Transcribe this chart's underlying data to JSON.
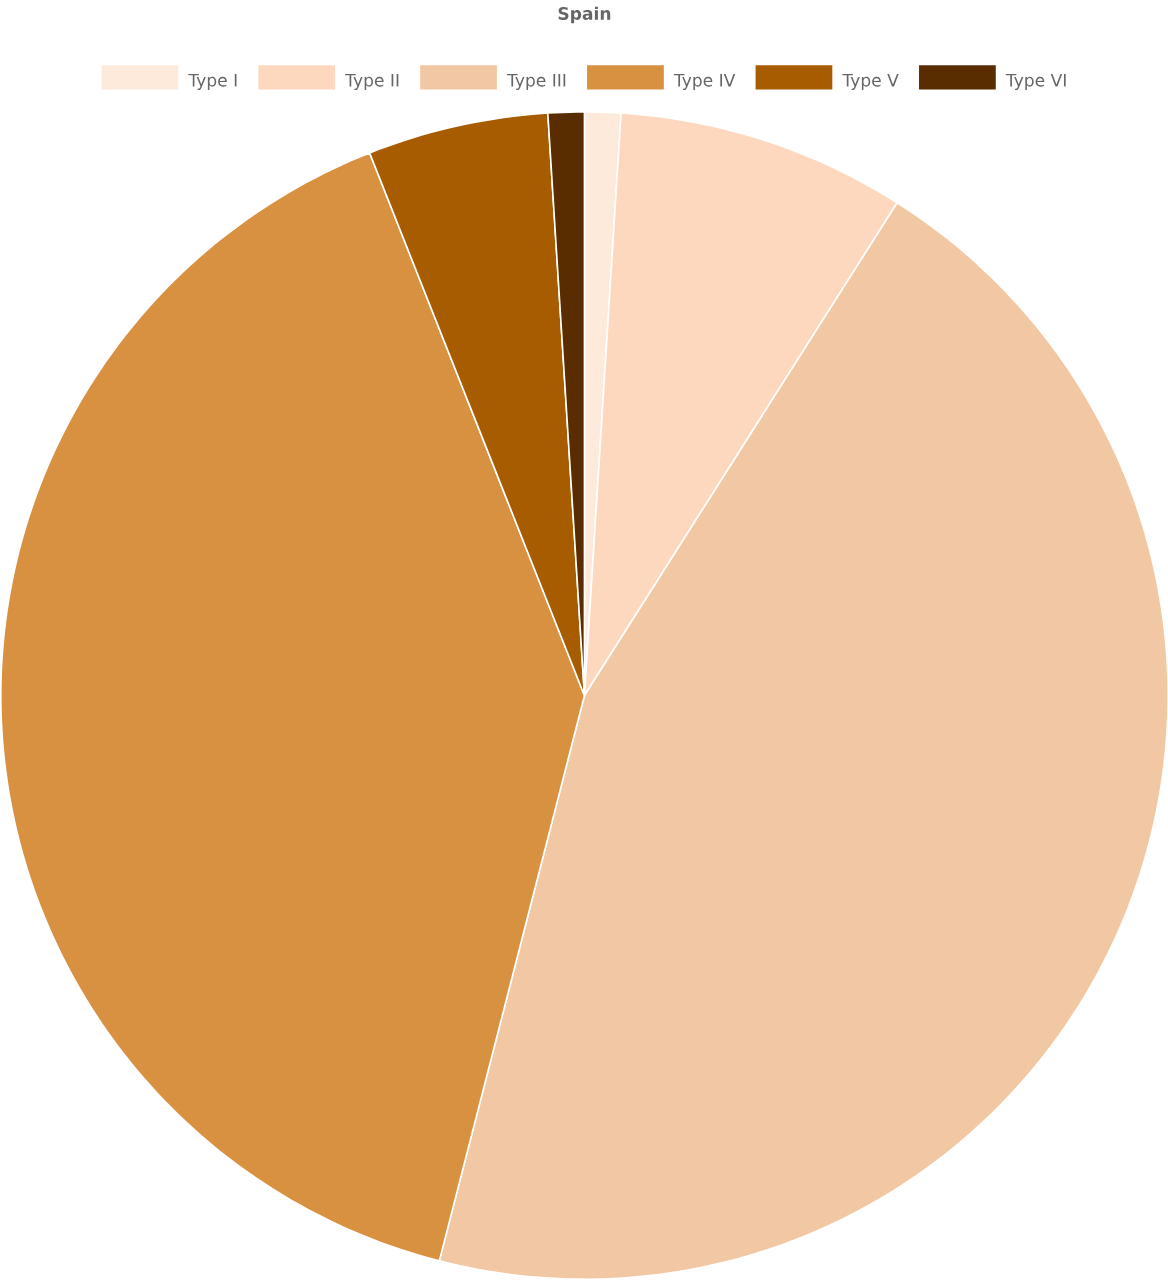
{
  "chart_data": {
    "type": "pie",
    "title": "Spain",
    "categories": [
      "Type I",
      "Type II",
      "Type III",
      "Type IV",
      "Type V",
      "Type VI"
    ],
    "values": [
      1,
      8,
      45,
      40,
      5,
      1
    ],
    "colors": [
      "#feeadb",
      "#fdd8bf",
      "#f2c8a4",
      "#d79140",
      "#a85c00",
      "#5a2d00"
    ],
    "legend": "top"
  }
}
